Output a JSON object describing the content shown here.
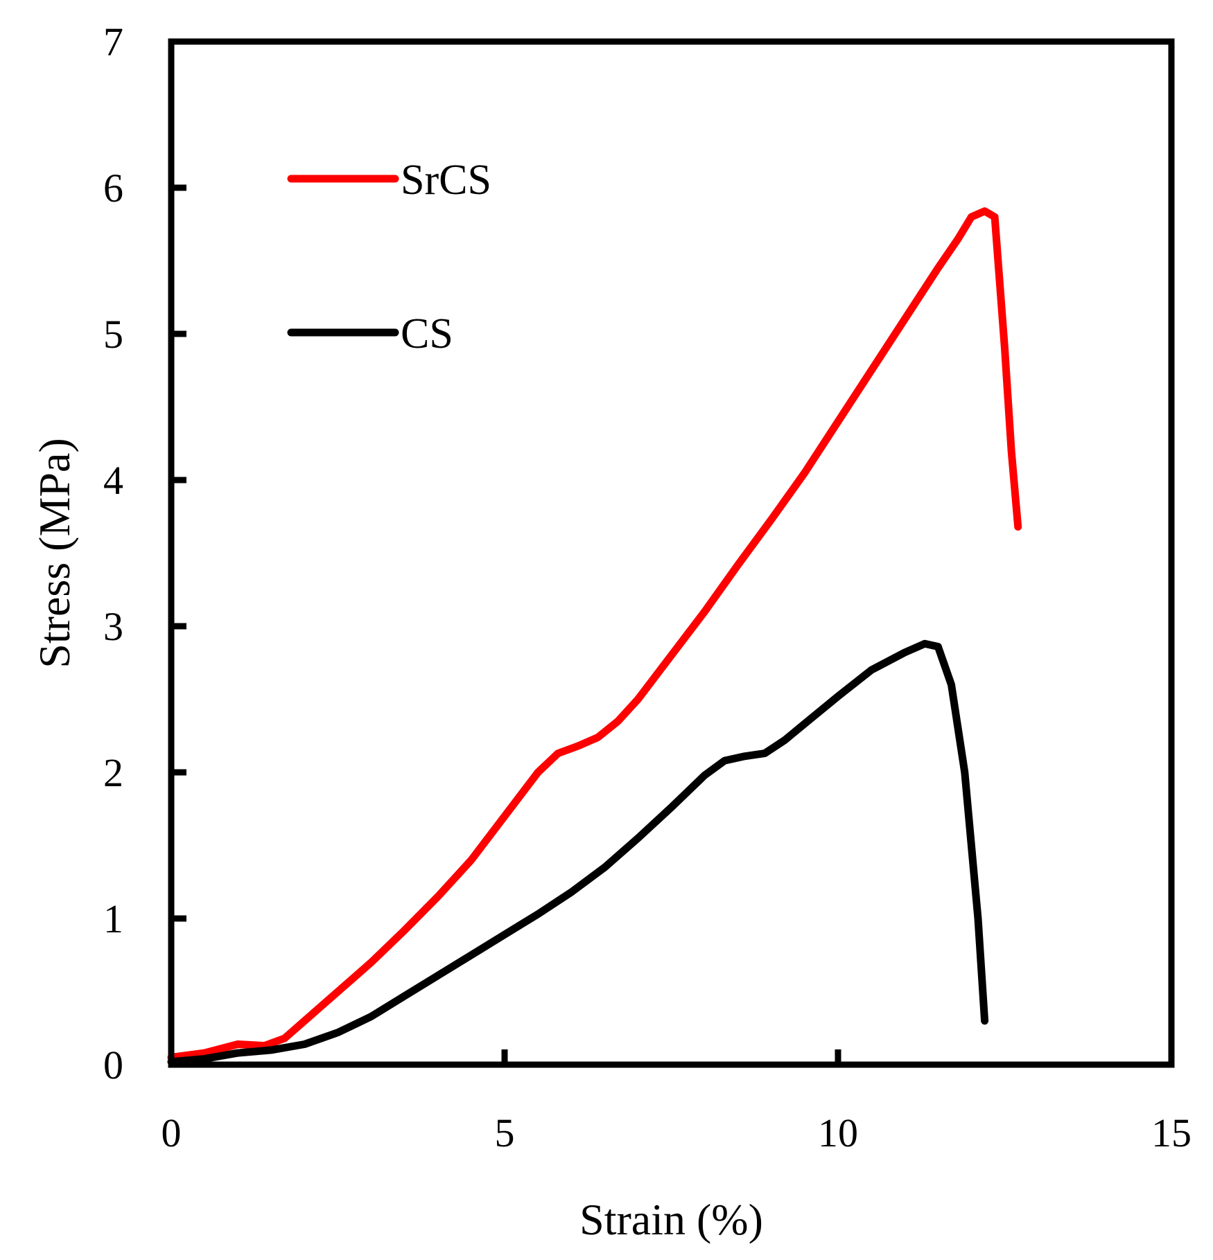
{
  "chart_data": {
    "type": "line",
    "title": "",
    "xlabel": "Strain (%)",
    "ylabel": "Stress (MPa)",
    "xlim": [
      0,
      15
    ],
    "ylim": [
      0,
      7
    ],
    "x_ticks": [
      0,
      5,
      10,
      15
    ],
    "y_ticks": [
      0,
      1,
      2,
      3,
      4,
      5,
      6,
      7
    ],
    "grid": false,
    "legend_position": "top-left",
    "series": [
      {
        "name": "SrCS",
        "color": "#ff0000",
        "points": [
          [
            0,
            0.05
          ],
          [
            0.5,
            0.08
          ],
          [
            1.0,
            0.14
          ],
          [
            1.4,
            0.13
          ],
          [
            1.7,
            0.18
          ],
          [
            2.0,
            0.3
          ],
          [
            2.5,
            0.5
          ],
          [
            3.0,
            0.7
          ],
          [
            3.5,
            0.92
          ],
          [
            4.0,
            1.15
          ],
          [
            4.5,
            1.4
          ],
          [
            5.0,
            1.7
          ],
          [
            5.5,
            2.0
          ],
          [
            5.8,
            2.13
          ],
          [
            6.1,
            2.18
          ],
          [
            6.4,
            2.24
          ],
          [
            6.7,
            2.35
          ],
          [
            7.0,
            2.5
          ],
          [
            7.5,
            2.8
          ],
          [
            8.0,
            3.1
          ],
          [
            8.5,
            3.42
          ],
          [
            9.0,
            3.73
          ],
          [
            9.5,
            4.05
          ],
          [
            10.0,
            4.4
          ],
          [
            10.5,
            4.75
          ],
          [
            11.0,
            5.1
          ],
          [
            11.5,
            5.45
          ],
          [
            11.8,
            5.65
          ],
          [
            12.0,
            5.8
          ],
          [
            12.2,
            5.84
          ],
          [
            12.35,
            5.8
          ],
          [
            12.5,
            4.9
          ],
          [
            12.6,
            4.2
          ],
          [
            12.7,
            3.68
          ]
        ]
      },
      {
        "name": "CS",
        "color": "#000000",
        "points": [
          [
            0,
            0.02
          ],
          [
            0.5,
            0.04
          ],
          [
            1.0,
            0.08
          ],
          [
            1.5,
            0.1
          ],
          [
            2.0,
            0.14
          ],
          [
            2.5,
            0.22
          ],
          [
            3.0,
            0.33
          ],
          [
            3.5,
            0.47
          ],
          [
            4.0,
            0.61
          ],
          [
            4.5,
            0.75
          ],
          [
            5.0,
            0.89
          ],
          [
            5.5,
            1.03
          ],
          [
            6.0,
            1.18
          ],
          [
            6.5,
            1.35
          ],
          [
            7.0,
            1.55
          ],
          [
            7.5,
            1.76
          ],
          [
            8.0,
            1.98
          ],
          [
            8.3,
            2.08
          ],
          [
            8.6,
            2.11
          ],
          [
            8.9,
            2.13
          ],
          [
            9.2,
            2.22
          ],
          [
            9.6,
            2.37
          ],
          [
            10.0,
            2.52
          ],
          [
            10.5,
            2.7
          ],
          [
            11.0,
            2.82
          ],
          [
            11.3,
            2.88
          ],
          [
            11.5,
            2.86
          ],
          [
            11.7,
            2.6
          ],
          [
            11.9,
            2.0
          ],
          [
            12.1,
            1.0
          ],
          [
            12.2,
            0.3
          ]
        ]
      }
    ]
  }
}
